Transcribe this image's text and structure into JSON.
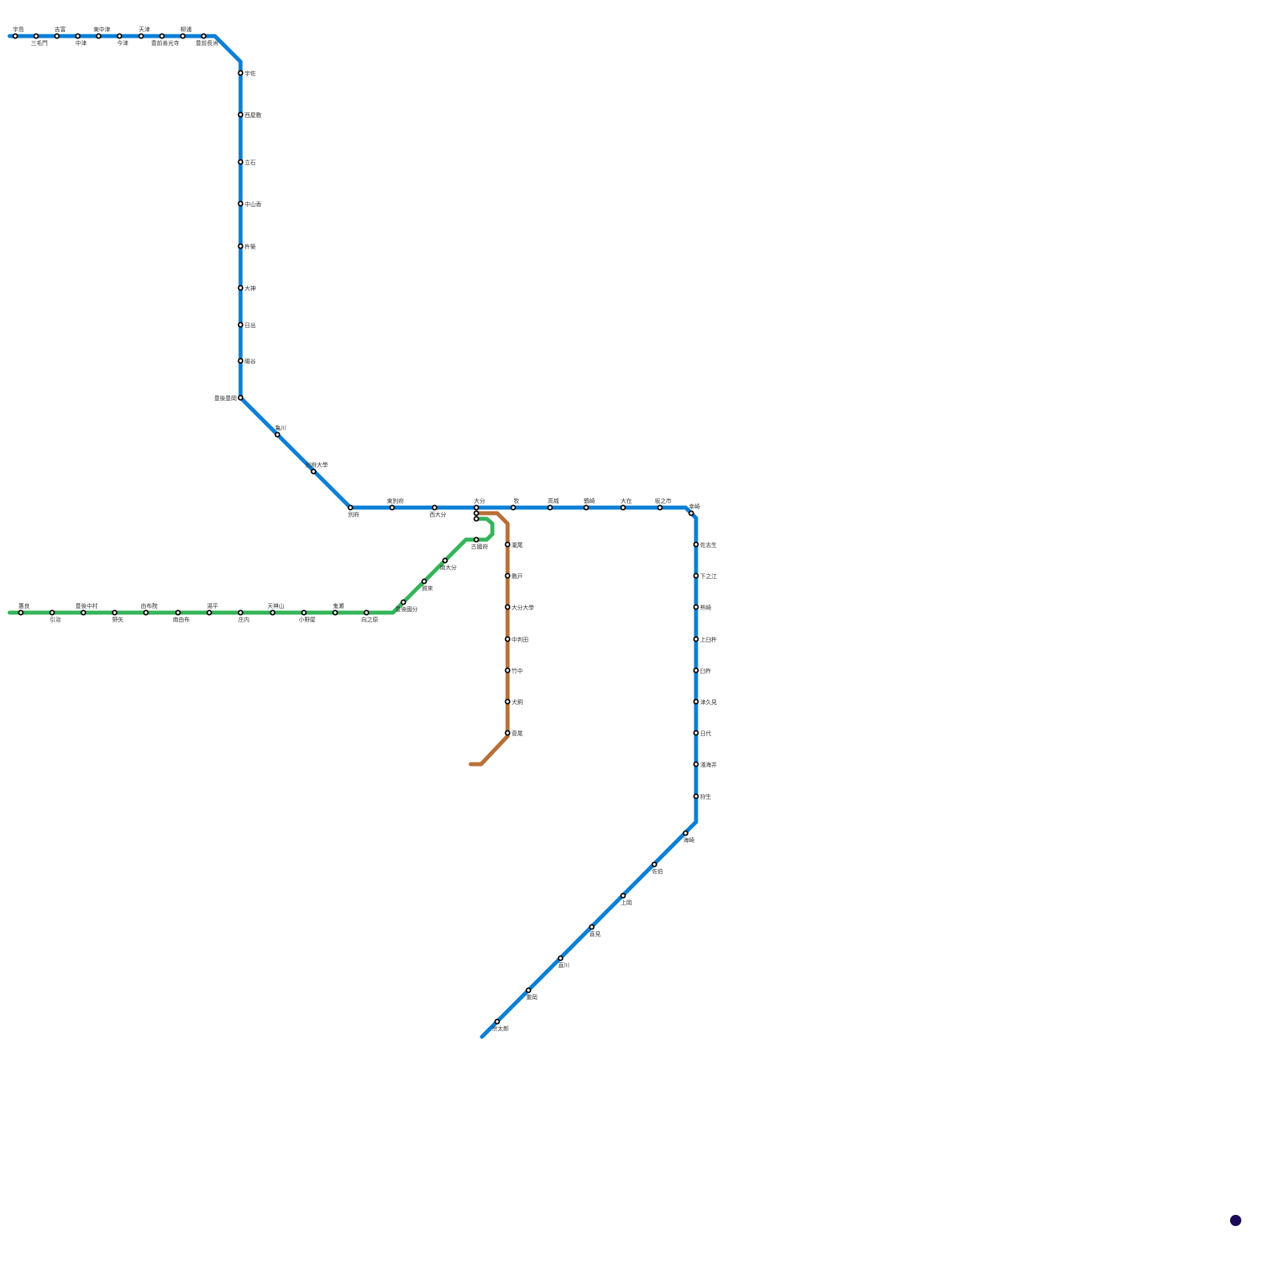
{
  "lines": [
    {
      "id": "blue",
      "color": "#0a7fd6",
      "stations": [
        {
          "name": "宇島",
          "side": "top"
        },
        {
          "name": "三毛門",
          "side": "bottom"
        },
        {
          "name": "吉富",
          "side": "top"
        },
        {
          "name": "中津",
          "side": "bottom"
        },
        {
          "name": "東中津",
          "side": "top"
        },
        {
          "name": "今津",
          "side": "bottom"
        },
        {
          "name": "天津",
          "side": "top"
        },
        {
          "name": "豊前善光寺",
          "side": "bottom"
        },
        {
          "name": "柳浦",
          "side": "top"
        },
        {
          "name": "豊前長洲",
          "side": "bottom"
        },
        {
          "name": "宇佐",
          "side": "right"
        },
        {
          "name": "西屋敷",
          "side": "right"
        },
        {
          "name": "立石",
          "side": "right"
        },
        {
          "name": "中山香",
          "side": "right"
        },
        {
          "name": "杵築",
          "side": "right"
        },
        {
          "name": "大神",
          "side": "right"
        },
        {
          "name": "日出",
          "side": "right"
        },
        {
          "name": "暘谷",
          "side": "right"
        },
        {
          "name": "豊後豊岡",
          "side": "left"
        },
        {
          "name": "亀川",
          "side": "top"
        },
        {
          "name": "別府大學",
          "side": "top"
        },
        {
          "name": "別府",
          "side": "bottom"
        },
        {
          "name": "東別府",
          "side": "top"
        },
        {
          "name": "西大分",
          "side": "bottom"
        },
        {
          "name": "大分",
          "side": "top"
        },
        {
          "name": "牧",
          "side": "top"
        },
        {
          "name": "高城",
          "side": "top"
        },
        {
          "name": "鶴崎",
          "side": "top"
        },
        {
          "name": "大在",
          "side": "top"
        },
        {
          "name": "坂之市",
          "side": "top"
        },
        {
          "name": "幸崎",
          "side": "top"
        },
        {
          "name": "佐志生",
          "side": "right"
        },
        {
          "name": "下之江",
          "side": "right"
        },
        {
          "name": "熊崎",
          "side": "right"
        },
        {
          "name": "上臼杵",
          "side": "right"
        },
        {
          "name": "臼杵",
          "side": "right"
        },
        {
          "name": "津久見",
          "side": "right"
        },
        {
          "name": "日代",
          "side": "right"
        },
        {
          "name": "淺海井",
          "side": "right"
        },
        {
          "name": "狩生",
          "side": "right"
        },
        {
          "name": "海崎",
          "side": "bottom"
        },
        {
          "name": "佐伯",
          "side": "bottom"
        },
        {
          "name": "上岡",
          "side": "bottom"
        },
        {
          "name": "直見",
          "side": "bottom"
        },
        {
          "name": "直川",
          "side": "bottom"
        },
        {
          "name": "重岡",
          "side": "bottom"
        },
        {
          "name": "宗太郎",
          "side": "bottom"
        }
      ]
    },
    {
      "id": "green",
      "color": "#35b45a",
      "stations": [
        {
          "name": "惠良",
          "side": "top"
        },
        {
          "name": "引治",
          "side": "bottom"
        },
        {
          "name": "豊後中村",
          "side": "top"
        },
        {
          "name": "野矢",
          "side": "bottom"
        },
        {
          "name": "由布院",
          "side": "top"
        },
        {
          "name": "南由布",
          "side": "bottom"
        },
        {
          "name": "湯平",
          "side": "top"
        },
        {
          "name": "庄内",
          "side": "bottom"
        },
        {
          "name": "天神山",
          "side": "top"
        },
        {
          "name": "小野屋",
          "side": "bottom"
        },
        {
          "name": "鬼瀬",
          "side": "top"
        },
        {
          "name": "向之原",
          "side": "bottom"
        },
        {
          "name": "豊後國分",
          "side": "bottom"
        },
        {
          "name": "賀來",
          "side": "bottom"
        },
        {
          "name": "南大分",
          "side": "bottom"
        },
        {
          "name": "古國府",
          "side": "bottom"
        },
        {
          "name": "",
          "side": "none"
        }
      ]
    },
    {
      "id": "brown",
      "color": "#b86f35",
      "stations": [
        {
          "name": "",
          "side": "none"
        },
        {
          "name": "瀧尾",
          "side": "right"
        },
        {
          "name": "敷戸",
          "side": "right"
        },
        {
          "name": "大分大學",
          "side": "right"
        },
        {
          "name": "中判田",
          "side": "right"
        },
        {
          "name": "竹中",
          "side": "right"
        },
        {
          "name": "犬飼",
          "side": "right"
        },
        {
          "name": "菅尾",
          "side": "right"
        }
      ]
    }
  ],
  "marker_color": "#1a0a55"
}
